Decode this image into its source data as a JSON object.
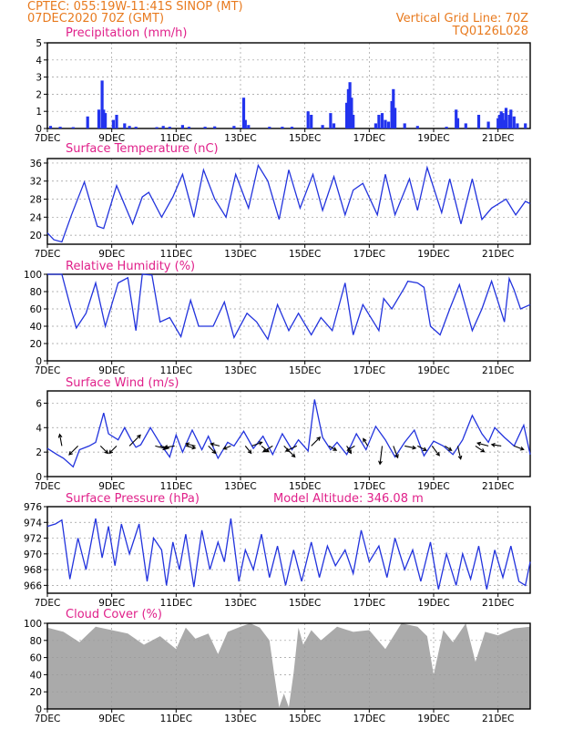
{
  "header": {
    "line1_left": "CPTEC:   055:19W-11:41S   SINOP (MT)",
    "line2_left": "07DEC2020 70Z (GMT)",
    "line2_right": "Vertical Grid Line: 70Z",
    "line3_right": "TQ0126L028"
  },
  "colors": {
    "header": "#e87a1e",
    "title": "#e0208a",
    "line": "#2233dd",
    "bar": "#2233ee",
    "cloud": "#aaaaaa",
    "arrow": "#000000"
  },
  "x_axis": {
    "ticks": [
      "7DEC",
      "9DEC",
      "11DEC",
      "13DEC",
      "15DEC",
      "17DEC",
      "19DEC",
      "21DEC"
    ],
    "tick_days": [
      0,
      2,
      4,
      6,
      8,
      10,
      12,
      14
    ],
    "range_days": [
      0,
      15
    ]
  },
  "panels": {
    "precip": {
      "title": "Precipitation (mm/h)",
      "yticks": [
        "0",
        "1",
        "2",
        "3",
        "4",
        "5"
      ]
    },
    "temp": {
      "title": "Surface Temperature (nC)",
      "yticks": [
        "20",
        "24",
        "28",
        "32",
        "36"
      ]
    },
    "rh": {
      "title": "Relative Humidity (%)",
      "yticks": [
        "0",
        "20",
        "40",
        "60",
        "80",
        "100"
      ]
    },
    "wind": {
      "title": "Surface Wind (m/s)",
      "yticks": [
        "0",
        "2",
        "4",
        "6"
      ]
    },
    "pressure": {
      "title": "Surface Pressure (hPa)",
      "extra": "Model Altitude: 346.08 m",
      "yticks": [
        "966",
        "968",
        "970",
        "972",
        "974",
        "976"
      ]
    },
    "cloud": {
      "title": "Cloud Cover (%)",
      "yticks": [
        "0",
        "20",
        "40",
        "60",
        "80",
        "100"
      ]
    }
  },
  "chart_data": [
    {
      "type": "bar",
      "title": "Precipitation (mm/h)",
      "ylim": [
        0,
        5
      ],
      "x_units": "days since 7DEC2020",
      "x": [
        0.1,
        0.4,
        0.8,
        1.25,
        1.6,
        1.7,
        1.75,
        1.8,
        2.05,
        2.15,
        2.4,
        2.55,
        2.75,
        3.4,
        3.6,
        3.8,
        4.2,
        4.4,
        4.9,
        5.2,
        5.8,
        6.1,
        6.15,
        6.25,
        6.9,
        7.3,
        7.6,
        8.1,
        8.2,
        8.55,
        8.8,
        8.9,
        9.3,
        9.35,
        9.4,
        9.45,
        9.5,
        10.2,
        10.3,
        10.4,
        10.5,
        10.6,
        10.7,
        10.75,
        10.8,
        11.1,
        11.5,
        12.4,
        12.7,
        12.75,
        13.0,
        13.4,
        13.7,
        14.0,
        14.05,
        14.1,
        14.15,
        14.2,
        14.25,
        14.35,
        14.4,
        14.5,
        14.6,
        14.85
      ],
      "values": [
        0.15,
        0.1,
        0.08,
        0.7,
        1.1,
        2.8,
        1.1,
        0.9,
        0.5,
        0.8,
        0.3,
        0.15,
        0.1,
        0.08,
        0.15,
        0.1,
        0.2,
        0.1,
        0.1,
        0.12,
        0.15,
        1.8,
        0.5,
        0.2,
        0.1,
        0.1,
        0.1,
        1.0,
        0.8,
        0.2,
        0.9,
        0.3,
        1.5,
        2.3,
        2.7,
        1.8,
        0.8,
        0.3,
        0.8,
        0.9,
        0.5,
        0.4,
        1.6,
        2.3,
        1.2,
        0.3,
        0.15,
        0.1,
        1.1,
        0.6,
        0.3,
        0.8,
        0.4,
        0.6,
        0.8,
        1.0,
        0.9,
        0.5,
        1.2,
        0.8,
        1.1,
        0.7,
        0.3,
        0.3
      ]
    },
    {
      "type": "line",
      "title": "Surface Temperature (nC)",
      "ylim": [
        18,
        37
      ],
      "x_units": "days since 7DEC2020",
      "x": [
        0,
        0.2,
        0.45,
        0.75,
        1.15,
        1.55,
        1.75,
        2.15,
        2.65,
        2.95,
        3.15,
        3.55,
        3.9,
        4.2,
        4.55,
        4.85,
        5.2,
        5.55,
        5.85,
        6.25,
        6.55,
        6.85,
        7.2,
        7.5,
        7.85,
        8.25,
        8.55,
        8.9,
        9.25,
        9.5,
        9.8,
        10.25,
        10.5,
        10.8,
        11.25,
        11.5,
        11.8,
        12.25,
        12.5,
        12.85,
        13.2,
        13.5,
        13.8,
        14.25,
        14.55,
        14.85,
        15.0
      ],
      "values": [
        20.5,
        19.0,
        18.5,
        24.5,
        31.8,
        22.0,
        21.5,
        31.0,
        22.5,
        28.5,
        29.5,
        24.0,
        28.5,
        33.5,
        24.0,
        34.5,
        28.0,
        24.0,
        33.5,
        26.0,
        35.5,
        32.0,
        23.5,
        34.5,
        26.0,
        33.5,
        25.5,
        33.0,
        24.5,
        30.0,
        31.5,
        24.5,
        33.5,
        24.5,
        32.5,
        25.5,
        35.0,
        25.0,
        32.5,
        22.5,
        32.5,
        23.5,
        26.0,
        28.0,
        24.5,
        27.5,
        27.0
      ]
    },
    {
      "type": "line",
      "title": "Relative Humidity (%)",
      "ylim": [
        0,
        100
      ],
      "x_units": "days since 7DEC2020",
      "x": [
        0,
        0.45,
        0.7,
        0.9,
        1.2,
        1.5,
        1.8,
        2.2,
        2.5,
        2.75,
        2.95,
        3.25,
        3.5,
        3.8,
        4.15,
        4.45,
        4.7,
        5.15,
        5.5,
        5.8,
        6.2,
        6.5,
        6.85,
        7.15,
        7.5,
        7.8,
        8.2,
        8.5,
        8.85,
        9.25,
        9.5,
        9.8,
        10.3,
        10.45,
        10.7,
        11.1,
        11.2,
        11.5,
        11.7,
        11.9,
        12.2,
        12.5,
        12.8,
        13.2,
        13.5,
        13.8,
        14.2,
        14.35,
        14.5,
        14.7,
        15.0
      ],
      "values": [
        100,
        100,
        65,
        38,
        55,
        90,
        40,
        90,
        96,
        35,
        100,
        99,
        45,
        50,
        28,
        70,
        40,
        40,
        68,
        27,
        55,
        45,
        25,
        65,
        35,
        55,
        30,
        50,
        35,
        90,
        30,
        65,
        35,
        72,
        60,
        85,
        92,
        90,
        85,
        40,
        30,
        60,
        88,
        35,
        60,
        92,
        45,
        95,
        82,
        60,
        65
      ]
    },
    {
      "type": "line",
      "title": "Surface Wind (m/s)",
      "ylim": [
        0,
        7
      ],
      "x_units": "days since 7DEC2020",
      "x": [
        0,
        0.3,
        0.5,
        0.8,
        1.0,
        1.3,
        1.5,
        1.75,
        1.9,
        2.2,
        2.4,
        2.6,
        2.75,
        2.9,
        3.2,
        3.5,
        3.8,
        4.0,
        4.2,
        4.5,
        4.8,
        5.0,
        5.3,
        5.6,
        5.8,
        6.1,
        6.4,
        6.7,
        7.0,
        7.3,
        7.6,
        7.8,
        8.1,
        8.3,
        8.55,
        8.8,
        9.0,
        9.3,
        9.6,
        9.9,
        10.2,
        10.5,
        10.8,
        11.1,
        11.4,
        11.7,
        12.0,
        12.3,
        12.6,
        12.9,
        13.2,
        13.5,
        13.7,
        13.9,
        14.2,
        14.5,
        14.8,
        15.0
      ],
      "values": [
        2.3,
        1.8,
        1.5,
        0.8,
        2.2,
        2.5,
        2.8,
        5.2,
        3.5,
        3.0,
        4.0,
        3.0,
        2.4,
        2.6,
        4.0,
        2.7,
        1.6,
        3.4,
        2.0,
        3.8,
        2.2,
        3.3,
        1.5,
        2.8,
        2.5,
        3.7,
        2.3,
        3.3,
        1.8,
        3.5,
        2.2,
        3.0,
        2.1,
        6.3,
        3.2,
        2.2,
        2.8,
        1.8,
        3.5,
        2.2,
        4.1,
        3.0,
        1.6,
        2.8,
        3.8,
        1.7,
        2.9,
        2.5,
        1.8,
        3.0,
        5.0,
        3.5,
        2.8,
        4.0,
        3.2,
        2.5,
        4.2,
        1.8
      ]
    },
    {
      "type": "line",
      "title": "Surface Pressure (hPa)",
      "ylim": [
        965,
        976
      ],
      "x_units": "days since 7DEC2020",
      "x": [
        0,
        0.25,
        0.45,
        0.7,
        0.95,
        1.2,
        1.5,
        1.7,
        1.9,
        2.1,
        2.3,
        2.55,
        2.85,
        3.1,
        3.3,
        3.55,
        3.7,
        3.9,
        4.1,
        4.3,
        4.55,
        4.8,
        5.05,
        5.3,
        5.5,
        5.7,
        5.95,
        6.15,
        6.4,
        6.65,
        6.9,
        7.15,
        7.4,
        7.65,
        7.9,
        8.2,
        8.45,
        8.7,
        8.95,
        9.25,
        9.5,
        9.75,
        10.0,
        10.3,
        10.55,
        10.8,
        11.1,
        11.35,
        11.6,
        11.9,
        12.15,
        12.4,
        12.7,
        12.9,
        13.15,
        13.4,
        13.65,
        13.9,
        14.15,
        14.4,
        14.65,
        14.85,
        15.0
      ],
      "values": [
        973.5,
        973.8,
        974.3,
        966.8,
        972.0,
        968.0,
        974.5,
        969.5,
        973.5,
        968.5,
        973.8,
        970.0,
        973.8,
        966.5,
        972.0,
        970.5,
        966.0,
        971.5,
        968.0,
        972.5,
        965.8,
        973.0,
        968.0,
        971.5,
        969.0,
        974.5,
        966.5,
        970.5,
        968.0,
        972.5,
        967.0,
        971.0,
        966.0,
        970.5,
        966.5,
        971.5,
        967.0,
        971.0,
        968.5,
        970.5,
        967.5,
        973.0,
        969.0,
        971.0,
        967.0,
        972.0,
        968.0,
        970.5,
        966.5,
        971.5,
        965.5,
        970.0,
        966.0,
        970.0,
        966.8,
        971.0,
        965.5,
        970.5,
        967.0,
        971.0,
        966.5,
        966.0,
        969.0
      ]
    },
    {
      "type": "area",
      "title": "Cloud Cover (%)",
      "ylim": [
        0,
        100
      ],
      "x_units": "days since 7DEC2020",
      "x": [
        0,
        0.5,
        1.0,
        1.5,
        2.0,
        2.5,
        3.0,
        3.5,
        4.0,
        4.3,
        4.6,
        5.0,
        5.3,
        5.6,
        6.0,
        6.3,
        6.6,
        6.9,
        7.05,
        7.2,
        7.35,
        7.5,
        7.65,
        7.8,
        7.95,
        8.2,
        8.5,
        9.0,
        9.5,
        10.0,
        10.5,
        11.0,
        11.5,
        11.8,
        12.0,
        12.3,
        12.6,
        13.0,
        13.3,
        13.6,
        14.0,
        14.5,
        15.0
      ],
      "values": [
        95,
        90,
        78,
        96,
        92,
        88,
        75,
        85,
        70,
        95,
        82,
        88,
        64,
        90,
        96,
        100,
        95,
        80,
        40,
        2,
        18,
        2,
        42,
        95,
        75,
        92,
        80,
        96,
        90,
        92,
        70,
        100,
        96,
        85,
        40,
        92,
        78,
        100,
        55,
        90,
        86,
        94,
        96
      ]
    }
  ],
  "wind_vectors": {
    "x_units": "days since 7DEC2020",
    "x": [
      0.45,
      0.95,
      1.65,
      2.15,
      2.55,
      3.35,
      3.5,
      3.95,
      4.3,
      4.6,
      5.0,
      5.35,
      5.7,
      6.15,
      6.35,
      6.65,
      7.0,
      7.35,
      7.75,
      8.2,
      8.75,
      9.3,
      9.55,
      9.95,
      10.4,
      10.75,
      11.1,
      11.5,
      11.95,
      12.35,
      12.75,
      13.3,
      13.7,
      14.1,
      14.5
    ],
    "u": [
      -0.3,
      -1.2,
      1.0,
      -1.0,
      1.5,
      1.5,
      1.2,
      -1.4,
      1.3,
      -1.3,
      1.0,
      -1.2,
      -1.0,
      0.8,
      1.4,
      1.0,
      -1.3,
      1.5,
      -1.5,
      1.2,
      1.0,
      0.6,
      -1.0,
      -0.6,
      -0.3,
      0.6,
      1.5,
      1.2,
      1.0,
      0.9,
      0.4,
      1.2,
      -1.5,
      -1.3,
      1.3
    ],
    "v": [
      1.6,
      -1.2,
      -1.0,
      -1.0,
      1.5,
      -0.4,
      -0.3,
      -0.2,
      -0.3,
      0.3,
      -1.0,
      0.3,
      -0.4,
      -1.0,
      0.5,
      -0.8,
      -0.8,
      -1.5,
      -0.7,
      1.2,
      -0.6,
      -1.0,
      -0.6,
      1.0,
      -2.5,
      -1.6,
      -0.3,
      -0.6,
      -1.3,
      -0.6,
      -1.8,
      -0.8,
      0.4,
      0.2,
      -0.5
    ]
  }
}
